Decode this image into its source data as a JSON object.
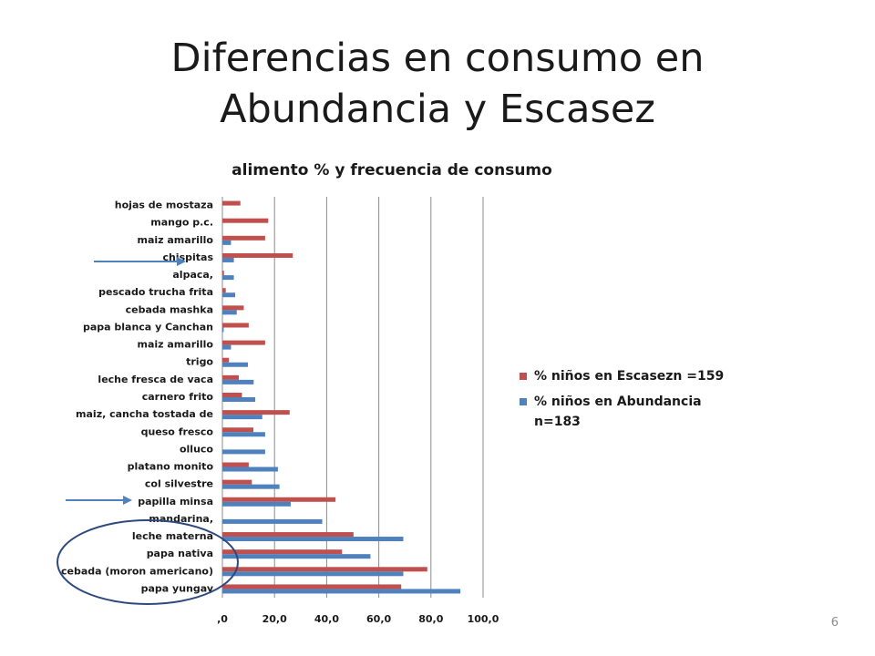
{
  "slide": {
    "title_line1": "Diferencias en consumo en",
    "title_line2": "Abundancia y Escasez",
    "page_number": "6"
  },
  "chart_data": {
    "type": "bar",
    "orientation": "horizontal",
    "title": "alimento % y frecuencia de consumo",
    "categories": [
      "hojas de mostaza",
      "mango  p.c.",
      "maiz amarillo",
      "chispitas",
      "alpaca,",
      "pescado trucha frita",
      "cebada mashka",
      "papa blanca y Canchan",
      "maiz amarillo",
      "trigo",
      "leche fresca de vaca",
      "carnero frito",
      "maiz, cancha tostada de",
      "queso fresco",
      "olluco",
      "platano monito",
      "col silvestre",
      "papilla minsa",
      "mandarina,",
      "leche materna",
      "papa nativa",
      "cebada (moron americano)",
      "papa yungay"
    ],
    "series": [
      {
        "name": "% niños en Escasezn =159",
        "color": "#c0504d",
        "values": [
          6.9,
          17.6,
          16.4,
          27.0,
          0.6,
          1.3,
          8.2,
          10.1,
          16.4,
          2.5,
          6.3,
          7.5,
          25.8,
          11.9,
          0.0,
          10.1,
          11.3,
          43.4,
          0.0,
          50.3,
          45.9,
          78.6,
          68.6
        ]
      },
      {
        "name": "% niños en Abundancia n=183",
        "name_line1": "% niños en Abundancia",
        "name_line2": "n=183",
        "color": "#4f81bd",
        "values": [
          0.0,
          0.0,
          3.3,
          4.4,
          4.4,
          4.9,
          5.5,
          0.5,
          3.3,
          9.8,
          12.0,
          12.6,
          15.3,
          16.4,
          16.4,
          21.3,
          21.9,
          26.2,
          38.3,
          69.4,
          56.8,
          69.4,
          91.3
        ]
      }
    ],
    "xlim": [
      0,
      100
    ],
    "xticks": [
      0,
      20,
      40,
      60,
      80,
      100
    ],
    "xtick_labels": [
      ",0",
      "20,0",
      "40,0",
      "60,0",
      "80,0",
      "100,0"
    ],
    "grid": "vertical",
    "legend_position": "right"
  },
  "annotations": {
    "arrow_color": "#4f81bd",
    "circle_color": "#2e4a7d"
  }
}
